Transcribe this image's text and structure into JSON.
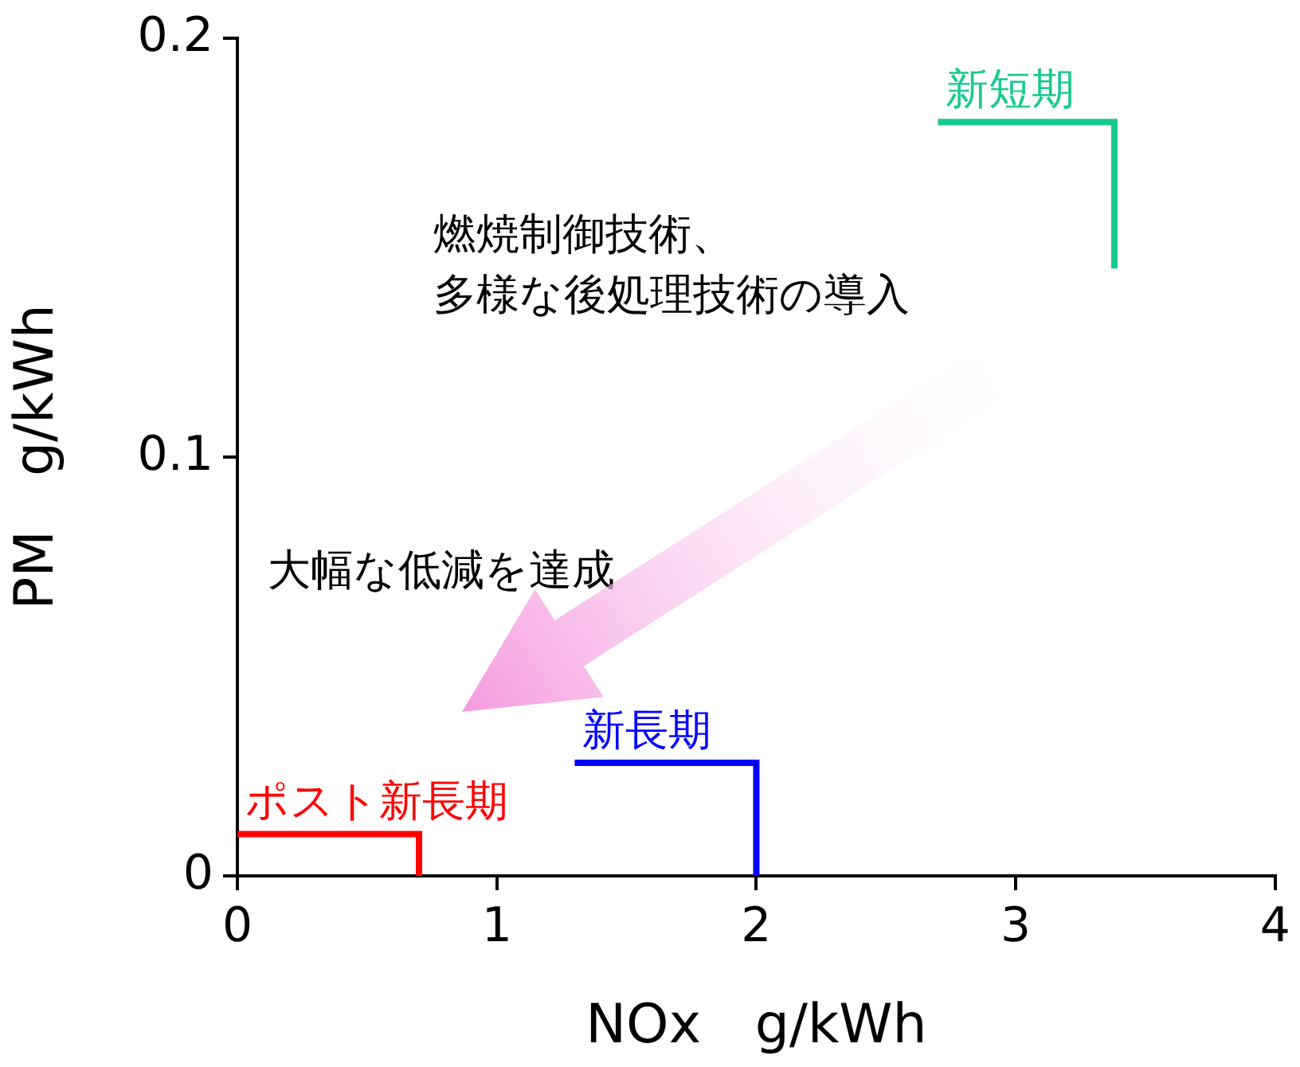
{
  "chart_data": {
    "type": "line",
    "xlabel": "NOx　g/kWh",
    "ylabel": "PM　g/kWh",
    "xlim": [
      0,
      4
    ],
    "xticks": [
      0,
      1,
      2,
      3,
      4
    ],
    "ylim": [
      0,
      0.2
    ],
    "yticks": [
      0,
      0.1,
      0.2
    ],
    "grid": false,
    "legend": false,
    "marker": "none",
    "annotations": [
      "燃焼制御技術、",
      "多様な後処理技術の導入",
      "大幅な低減を達成"
    ],
    "series": [
      {
        "name": "新短期",
        "color": "#17c98e",
        "x": [
          2.7,
          3.38,
          3.38
        ],
        "values": [
          0.18,
          0.18,
          0.145
        ]
      },
      {
        "name": "新長期",
        "color": "#0000ff",
        "x": [
          1.3,
          2.0,
          2.0
        ],
        "values": [
          0.027,
          0.027,
          0
        ]
      },
      {
        "name": "ポスト新長期",
        "color": "#ff0000",
        "x": [
          0,
          0.7,
          0.7
        ],
        "values": [
          0.01,
          0.01,
          0
        ]
      }
    ]
  }
}
